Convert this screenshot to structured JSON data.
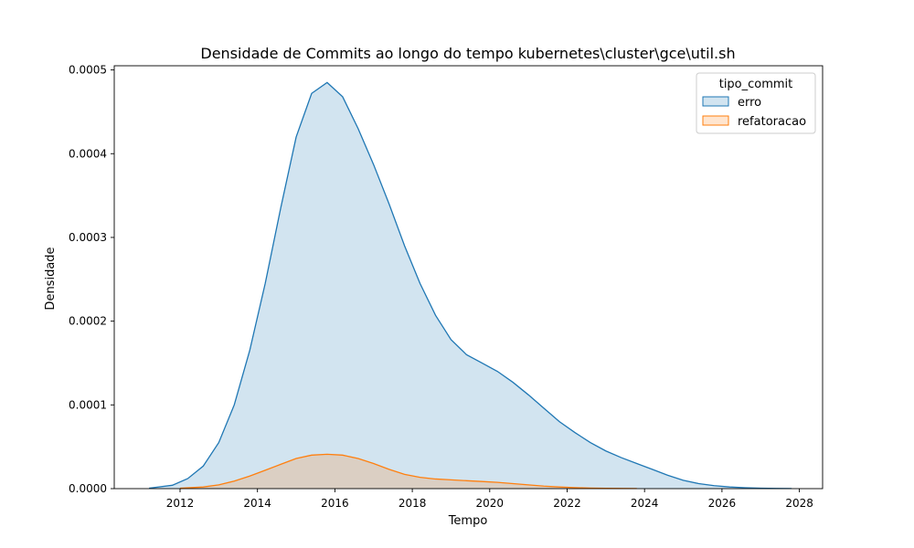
{
  "chart_data": {
    "type": "area",
    "title": "Densidade de Commits ao longo do tempo kubernetes\\cluster\\gce\\util.sh",
    "xlabel": "Tempo",
    "ylabel": "Densidade",
    "xlim": [
      2010.3,
      2028.6
    ],
    "ylim": [
      0,
      0.000505
    ],
    "x_ticks": [
      2012,
      2014,
      2016,
      2018,
      2020,
      2022,
      2024,
      2026,
      2028
    ],
    "y_ticks": [
      0,
      0.0001,
      0.0002,
      0.0003,
      0.0004,
      0.0005
    ],
    "y_tick_labels": [
      "0.0000",
      "0.0001",
      "0.0002",
      "0.0003",
      "0.0004",
      "0.0005"
    ],
    "grid": false,
    "legend": {
      "title": "tipo_commit",
      "placement": "top-right"
    },
    "series": [
      {
        "name": "erro",
        "color": "#1f77b4",
        "x": [
          2011.2,
          2011.8,
          2012.2,
          2012.6,
          2013.0,
          2013.4,
          2013.8,
          2014.2,
          2014.6,
          2015.0,
          2015.4,
          2015.8,
          2016.2,
          2016.6,
          2017.0,
          2017.4,
          2017.8,
          2018.2,
          2018.6,
          2019.0,
          2019.4,
          2019.8,
          2020.2,
          2020.6,
          2021.0,
          2021.4,
          2021.8,
          2022.2,
          2022.6,
          2023.0,
          2023.4,
          2023.8,
          2024.2,
          2024.6,
          2025.0,
          2025.4,
          2025.8,
          2026.2,
          2026.6,
          2027.0,
          2027.4,
          2027.8
        ],
        "y": [
          5e-07,
          4e-06,
          1.2e-05,
          2.7e-05,
          5.5e-05,
          0.0001,
          0.000165,
          0.000245,
          0.000335,
          0.00042,
          0.000472,
          0.000485,
          0.000468,
          0.00043,
          0.000387,
          0.00034,
          0.00029,
          0.000245,
          0.000207,
          0.000178,
          0.00016,
          0.00015,
          0.00014,
          0.000127,
          0.000112,
          9.6e-05,
          8e-05,
          6.7e-05,
          5.5e-05,
          4.5e-05,
          3.7e-05,
          3e-05,
          2.3e-05,
          1.6e-05,
          1e-05,
          6e-06,
          3.5e-06,
          2e-06,
          1.1e-06,
          5e-07,
          2e-07,
          1e-07
        ]
      },
      {
        "name": "refatoracao",
        "color": "#ff7f0e",
        "x": [
          2012.0,
          2012.6,
          2013.0,
          2013.4,
          2013.8,
          2014.2,
          2014.6,
          2015.0,
          2015.4,
          2015.8,
          2016.2,
          2016.6,
          2017.0,
          2017.4,
          2017.8,
          2018.2,
          2018.6,
          2019.0,
          2019.4,
          2019.8,
          2020.2,
          2020.6,
          2021.0,
          2021.4,
          2021.8,
          2022.2,
          2022.6,
          2023.0,
          2023.4,
          2023.8
        ],
        "y": [
          5e-07,
          2e-06,
          4.5e-06,
          9e-06,
          1.5e-05,
          2.2e-05,
          2.9e-05,
          3.6e-05,
          4e-05,
          4.1e-05,
          4e-05,
          3.6e-05,
          3e-05,
          2.3e-05,
          1.7e-05,
          1.35e-05,
          1.15e-05,
          1.05e-05,
          9.5e-06,
          8.5e-06,
          7.5e-06,
          6e-06,
          4.5e-06,
          3e-06,
          2e-06,
          1.2e-06,
          7e-07,
          4e-07,
          2e-07,
          1e-07
        ]
      }
    ]
  }
}
